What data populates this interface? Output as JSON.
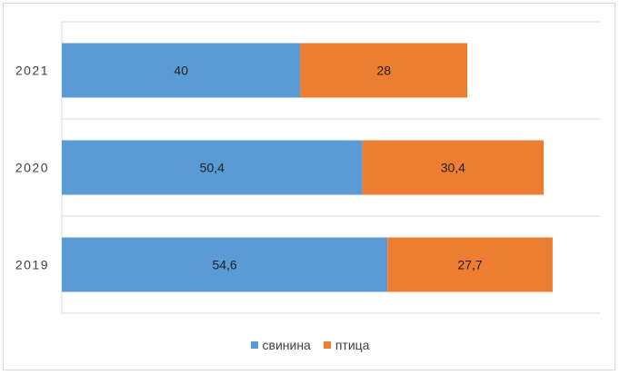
{
  "chart_data": {
    "type": "bar",
    "orientation": "horizontal",
    "stacked": true,
    "categories": [
      "2021",
      "2020",
      "2019"
    ],
    "series": [
      {
        "name": "свинина",
        "color": "#5b9bd5",
        "values": [
          40,
          50.4,
          54.6
        ],
        "labels": [
          "40",
          "50,4",
          "54,6"
        ]
      },
      {
        "name": "птица",
        "color": "#ed7d31",
        "values": [
          28,
          30.4,
          27.7
        ],
        "labels": [
          "28",
          "30,4",
          "27,7"
        ]
      }
    ],
    "xlim": [
      0,
      90
    ],
    "grid": "horizontal-separators",
    "legend_position": "bottom"
  }
}
